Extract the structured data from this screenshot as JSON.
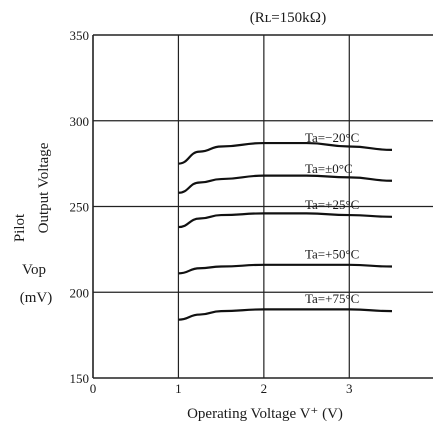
{
  "chart_data": {
    "type": "line",
    "title": "",
    "subtitle": "(Rʟ=150kΩ)",
    "xlabel": "Operating Voltage  V⁺ (V)",
    "ylabel_line1": "Pilot",
    "ylabel_line2": "Output Voltage",
    "ylabel_symbol": "Vop",
    "ylabel_unit": "(mV)",
    "xlim": [
      0,
      3
    ],
    "ylim": [
      150,
      350
    ],
    "x_ticks": [
      "0",
      "1",
      "2",
      "3"
    ],
    "y_ticks": [
      "150",
      "200",
      "250",
      "300",
      "350"
    ],
    "grid": true,
    "colors": {
      "curve": "#111111",
      "grid": "#222222"
    },
    "series": [
      {
        "name": "Ta=−20°C",
        "x": [
          1.0,
          1.25,
          1.5,
          2.0,
          2.5,
          3.0,
          3.5
        ],
        "y": [
          275,
          282,
          285,
          287,
          287,
          285,
          283
        ]
      },
      {
        "name": "Ta=±0°C",
        "x": [
          1.0,
          1.25,
          1.5,
          2.0,
          2.5,
          3.0,
          3.5
        ],
        "y": [
          258,
          264,
          266,
          268,
          268,
          267,
          265
        ]
      },
      {
        "name": "Ta=+25°C",
        "x": [
          1.0,
          1.25,
          1.5,
          2.0,
          2.5,
          3.0,
          3.5
        ],
        "y": [
          238,
          243,
          245,
          246,
          246,
          245,
          244
        ]
      },
      {
        "name": "Ta=+50°C",
        "x": [
          1.0,
          1.25,
          1.5,
          2.0,
          2.5,
          3.0,
          3.5
        ],
        "y": [
          211,
          214,
          215,
          216,
          216,
          216,
          215
        ]
      },
      {
        "name": "Ta=+75°C",
        "x": [
          1.0,
          1.25,
          1.5,
          2.0,
          2.5,
          3.0,
          3.5
        ],
        "y": [
          184,
          187,
          189,
          190,
          190,
          190,
          189
        ]
      }
    ]
  }
}
